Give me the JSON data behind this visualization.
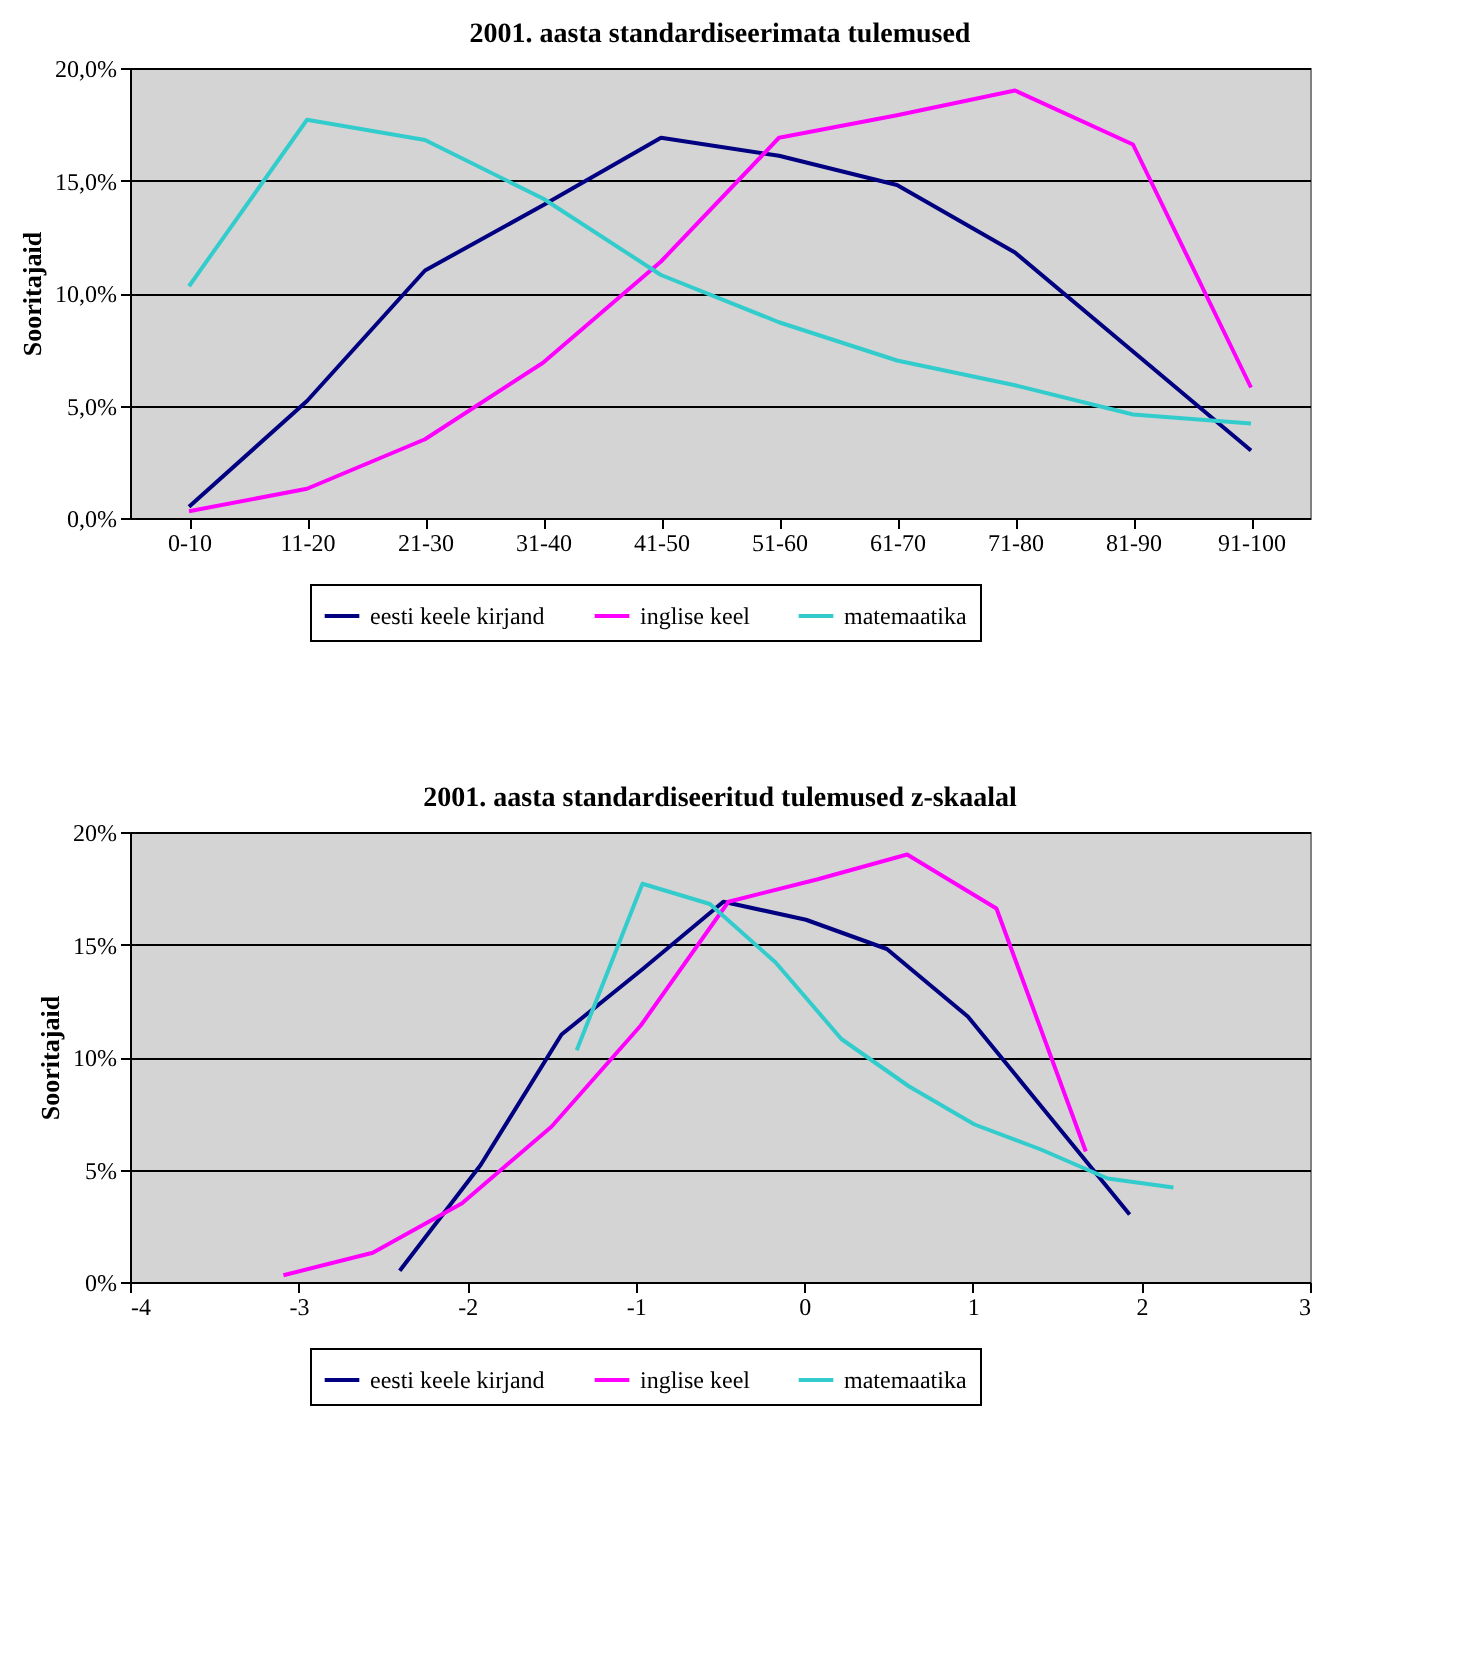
{
  "chart_data": [
    {
      "type": "line",
      "title": "2001. aasta standardiseerimata tulemused",
      "ylabel": "Sooritajaid",
      "categories": [
        "0-10",
        "11-20",
        "21-30",
        "31-40",
        "41-50",
        "51-60",
        "61-70",
        "71-80",
        "81-90",
        "91-100"
      ],
      "series": [
        {
          "name": "eesti keele kirjand",
          "color": "#000080",
          "values": [
            0.5,
            5.2,
            11.0,
            13.9,
            16.9,
            16.1,
            14.8,
            11.8,
            7.4,
            3.0
          ]
        },
        {
          "name": "inglise keel",
          "color": "#ff00ff",
          "values": [
            0.3,
            1.3,
            3.5,
            6.9,
            11.4,
            16.9,
            17.9,
            19.0,
            16.6,
            5.8
          ]
        },
        {
          "name": "matemaatika",
          "color": "#33cccc",
          "values": [
            10.3,
            17.7,
            16.8,
            14.2,
            10.8,
            8.7,
            7.0,
            5.9,
            4.6,
            4.2
          ]
        }
      ],
      "ylim": [
        0,
        20
      ],
      "yticks": [
        {
          "value": 0,
          "label": "0,0%"
        },
        {
          "value": 5,
          "label": "5,0%"
        },
        {
          "value": 10,
          "label": "10,0%"
        },
        {
          "value": 15,
          "label": "15,0%"
        },
        {
          "value": 20,
          "label": "20,0%"
        }
      ],
      "grid": "y",
      "legend": "bottom"
    },
    {
      "type": "line",
      "title": "2001. aasta standardiseeritud tulemused z-skaalal",
      "ylabel": "Sooritajaid",
      "series": [
        {
          "name": "eesti keele kirjand",
          "color": "#000080",
          "x": [
            -2.4,
            -1.92,
            -1.44,
            -0.96,
            -0.48,
            0.01,
            0.49,
            0.97,
            1.45,
            1.93
          ],
          "values": [
            0.5,
            5.2,
            11.0,
            13.9,
            16.9,
            16.1,
            14.8,
            11.8,
            7.4,
            3.0
          ]
        },
        {
          "name": "inglise keel",
          "color": "#ff00ff",
          "x": [
            -3.09,
            -2.56,
            -2.03,
            -1.5,
            -0.97,
            -0.45,
            0.08,
            0.61,
            1.14,
            1.67
          ],
          "values": [
            0.3,
            1.3,
            3.5,
            6.9,
            11.4,
            16.9,
            17.9,
            19.0,
            16.6,
            5.8
          ]
        },
        {
          "name": "matemaatika",
          "color": "#33cccc",
          "x": [
            -1.35,
            -0.96,
            -0.56,
            -0.17,
            0.22,
            0.62,
            1.01,
            1.4,
            1.8,
            2.19
          ],
          "values": [
            10.3,
            17.7,
            16.8,
            14.2,
            10.8,
            8.7,
            7.0,
            5.9,
            4.6,
            4.2
          ]
        }
      ],
      "xlim": [
        -4,
        3
      ],
      "xticks": [
        -4,
        -3,
        -2,
        -1,
        0,
        1,
        2,
        3
      ],
      "ylim": [
        0,
        20
      ],
      "yticks": [
        {
          "value": 0,
          "label": "0%"
        },
        {
          "value": 5,
          "label": "5%"
        },
        {
          "value": 10,
          "label": "10%"
        },
        {
          "value": 15,
          "label": "15%"
        },
        {
          "value": 20,
          "label": "20%"
        }
      ],
      "grid": "y",
      "legend": "bottom"
    }
  ]
}
